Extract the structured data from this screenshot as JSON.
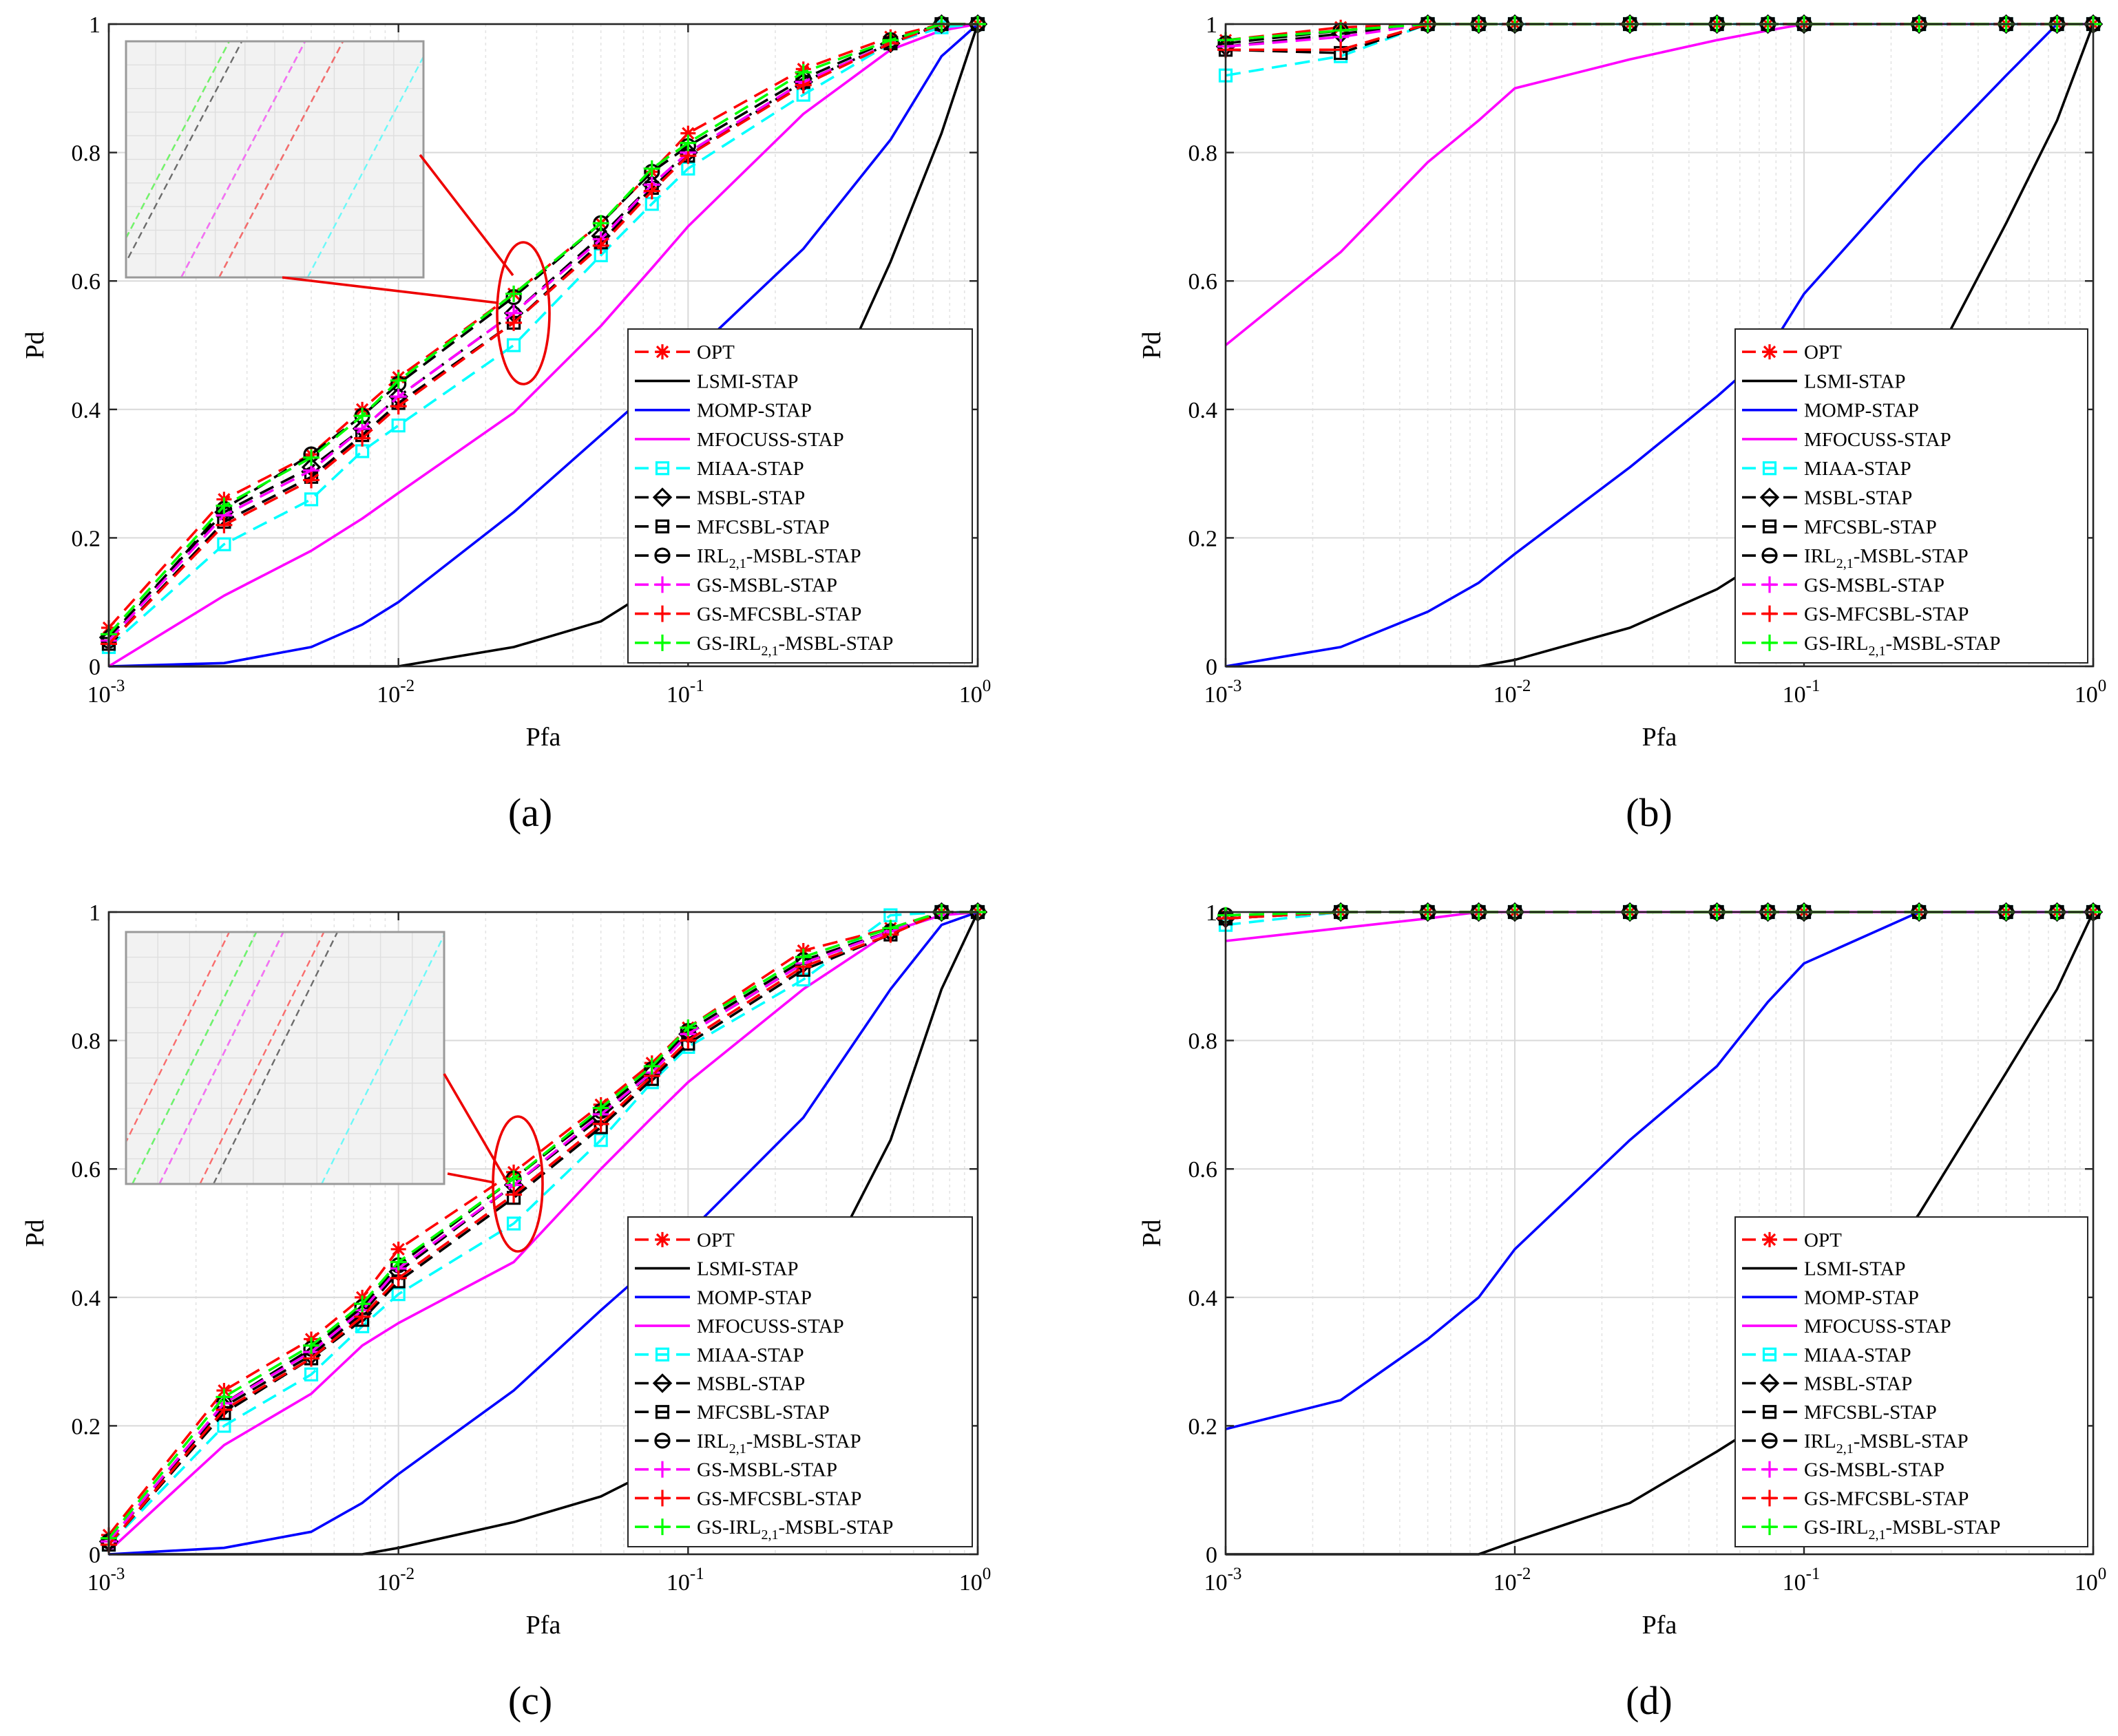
{
  "chart_data": [
    {
      "id": "a",
      "type": "line",
      "caption": "(a)",
      "xlabel": "Pfa",
      "ylabel": "Pd",
      "xscale": "log",
      "xlim": [
        0.001,
        1
      ],
      "ylim": [
        0,
        1
      ],
      "grid": true,
      "legend_position": "bottom-right",
      "inset": "zoom-in around Pfa = 0.025",
      "yticks": [
        "0",
        "0.2",
        "0.4",
        "0.6",
        "0.8",
        "1"
      ],
      "xticks": [
        {
          "base": "10",
          "exp": "-3"
        },
        {
          "base": "10",
          "exp": "-2"
        },
        {
          "base": "10",
          "exp": "-1"
        },
        {
          "base": "10",
          "exp": "0"
        }
      ],
      "x": [
        0.001,
        0.0025,
        0.005,
        0.0075,
        0.01,
        0.025,
        0.05,
        0.075,
        0.1,
        0.25,
        0.5,
        0.75,
        1
      ],
      "series": [
        {
          "key": "opt",
          "values": [
            0.06,
            0.26,
            0.33,
            0.4,
            0.45,
            0.58,
            0.69,
            0.77,
            0.83,
            0.93,
            0.98,
            1.0,
            1.0
          ]
        },
        {
          "key": "lsmi",
          "values": [
            0,
            0,
            0,
            0,
            0,
            0.03,
            0.07,
            0.12,
            0.16,
            0.33,
            0.63,
            0.83,
            1.0
          ]
        },
        {
          "key": "momp",
          "values": [
            0,
            0.005,
            0.03,
            0.065,
            0.1,
            0.24,
            0.36,
            0.43,
            0.48,
            0.65,
            0.82,
            0.95,
            1.0
          ]
        },
        {
          "key": "mfocuss",
          "values": [
            0,
            0.11,
            0.18,
            0.23,
            0.27,
            0.395,
            0.53,
            0.62,
            0.685,
            0.86,
            0.96,
            0.99,
            1.0
          ]
        },
        {
          "key": "miaa",
          "values": [
            0.03,
            0.19,
            0.26,
            0.335,
            0.375,
            0.5,
            0.64,
            0.72,
            0.775,
            0.89,
            0.97,
            0.995,
            1.0
          ]
        },
        {
          "key": "msbl",
          "values": [
            0.045,
            0.24,
            0.31,
            0.37,
            0.42,
            0.55,
            0.67,
            0.75,
            0.8,
            0.91,
            0.97,
            1.0,
            1.0
          ]
        },
        {
          "key": "mfcsbl",
          "values": [
            0.035,
            0.225,
            0.295,
            0.36,
            0.41,
            0.535,
            0.66,
            0.745,
            0.795,
            0.91,
            0.97,
            1.0,
            1.0
          ]
        },
        {
          "key": "irl",
          "values": [
            0.04,
            0.245,
            0.33,
            0.39,
            0.44,
            0.575,
            0.69,
            0.77,
            0.81,
            0.915,
            0.975,
            1.0,
            1.0
          ]
        },
        {
          "key": "gsmsbl",
          "values": [
            0.04,
            0.235,
            0.305,
            0.37,
            0.42,
            0.55,
            0.665,
            0.75,
            0.8,
            0.91,
            0.97,
            1.0,
            1.0
          ]
        },
        {
          "key": "gsmfcsbl",
          "values": [
            0.035,
            0.22,
            0.29,
            0.355,
            0.405,
            0.535,
            0.655,
            0.74,
            0.795,
            0.905,
            0.97,
            1.0,
            1.0
          ]
        },
        {
          "key": "gsirl",
          "values": [
            0.05,
            0.25,
            0.325,
            0.39,
            0.445,
            0.58,
            0.69,
            0.775,
            0.815,
            0.925,
            0.975,
            1.0,
            1.0
          ]
        }
      ]
    },
    {
      "id": "b",
      "type": "line",
      "caption": "(b)",
      "xlabel": "Pfa",
      "ylabel": "Pd",
      "xscale": "log",
      "xlim": [
        0.001,
        1
      ],
      "ylim": [
        0,
        1
      ],
      "grid": true,
      "legend_position": "bottom-right",
      "yticks": [
        "0",
        "0.2",
        "0.4",
        "0.6",
        "0.8",
        "1"
      ],
      "xticks": [
        {
          "base": "10",
          "exp": "-3"
        },
        {
          "base": "10",
          "exp": "-2"
        },
        {
          "base": "10",
          "exp": "-1"
        },
        {
          "base": "10",
          "exp": "0"
        }
      ],
      "x": [
        0.001,
        0.0025,
        0.005,
        0.0075,
        0.01,
        0.025,
        0.05,
        0.075,
        0.1,
        0.25,
        0.5,
        0.75,
        1
      ],
      "series": [
        {
          "key": "opt",
          "values": [
            0.975,
            0.995,
            1.0,
            1.0,
            1.0,
            1.0,
            1.0,
            1.0,
            1.0,
            1.0,
            1.0,
            1.0,
            1.0
          ]
        },
        {
          "key": "lsmi",
          "values": [
            0,
            0,
            0,
            0,
            0.01,
            0.06,
            0.12,
            0.17,
            0.22,
            0.43,
            0.69,
            0.85,
            1.0
          ]
        },
        {
          "key": "momp",
          "values": [
            0,
            0.03,
            0.085,
            0.13,
            0.175,
            0.31,
            0.42,
            0.49,
            0.58,
            0.78,
            0.92,
            1.0,
            1.0
          ]
        },
        {
          "key": "mfocuss",
          "values": [
            0.5,
            0.645,
            0.785,
            0.85,
            0.9,
            0.945,
            0.975,
            0.99,
            1.0,
            1.0,
            1.0,
            1.0,
            1.0
          ]
        },
        {
          "key": "miaa",
          "values": [
            0.92,
            0.95,
            1.0,
            1.0,
            1.0,
            1.0,
            1.0,
            1.0,
            1.0,
            1.0,
            1.0,
            1.0,
            1.0
          ]
        },
        {
          "key": "msbl",
          "values": [
            0.965,
            0.985,
            1.0,
            1.0,
            1.0,
            1.0,
            1.0,
            1.0,
            1.0,
            1.0,
            1.0,
            1.0,
            1.0
          ]
        },
        {
          "key": "mfcsbl",
          "values": [
            0.96,
            0.955,
            1.0,
            1.0,
            1.0,
            1.0,
            1.0,
            1.0,
            1.0,
            1.0,
            1.0,
            1.0,
            1.0
          ]
        },
        {
          "key": "irl",
          "values": [
            0.97,
            0.99,
            1.0,
            1.0,
            1.0,
            1.0,
            1.0,
            1.0,
            1.0,
            1.0,
            1.0,
            1.0,
            1.0
          ]
        },
        {
          "key": "gsmsbl",
          "values": [
            0.965,
            0.98,
            1.0,
            1.0,
            1.0,
            1.0,
            1.0,
            1.0,
            1.0,
            1.0,
            1.0,
            1.0,
            1.0
          ]
        },
        {
          "key": "gsmfcsbl",
          "values": [
            0.96,
            0.96,
            1.0,
            1.0,
            1.0,
            1.0,
            1.0,
            1.0,
            1.0,
            1.0,
            1.0,
            1.0,
            1.0
          ]
        },
        {
          "key": "gsirl",
          "values": [
            0.975,
            0.99,
            1.0,
            1.0,
            1.0,
            1.0,
            1.0,
            1.0,
            1.0,
            1.0,
            1.0,
            1.0,
            1.0
          ]
        }
      ]
    },
    {
      "id": "c",
      "type": "line",
      "caption": "(c)",
      "xlabel": "Pfa",
      "ylabel": "Pd",
      "xscale": "log",
      "xlim": [
        0.001,
        1
      ],
      "ylim": [
        0,
        1
      ],
      "grid": true,
      "legend_position": "bottom-right",
      "inset": "zoom-in around Pfa = 0.025",
      "yticks": [
        "0",
        "0.2",
        "0.4",
        "0.6",
        "0.8",
        "1"
      ],
      "xticks": [
        {
          "base": "10",
          "exp": "-3"
        },
        {
          "base": "10",
          "exp": "-2"
        },
        {
          "base": "10",
          "exp": "-1"
        },
        {
          "base": "10",
          "exp": "0"
        }
      ],
      "x": [
        0.001,
        0.0025,
        0.005,
        0.0075,
        0.01,
        0.025,
        0.05,
        0.075,
        0.1,
        0.25,
        0.5,
        0.75,
        1
      ],
      "series": [
        {
          "key": "opt",
          "values": [
            0.03,
            0.255,
            0.335,
            0.4,
            0.475,
            0.595,
            0.7,
            0.765,
            0.82,
            0.94,
            0.975,
            1.0,
            1.0
          ]
        },
        {
          "key": "lsmi",
          "values": [
            0,
            0,
            0,
            0,
            0.01,
            0.05,
            0.09,
            0.13,
            0.175,
            0.38,
            0.645,
            0.88,
            1.0
          ]
        },
        {
          "key": "momp",
          "values": [
            0,
            0.01,
            0.035,
            0.08,
            0.125,
            0.255,
            0.38,
            0.45,
            0.5,
            0.68,
            0.88,
            0.98,
            1.0
          ]
        },
        {
          "key": "mfocuss",
          "values": [
            0.005,
            0.17,
            0.25,
            0.325,
            0.36,
            0.455,
            0.6,
            0.68,
            0.735,
            0.88,
            0.97,
            0.995,
            1.0
          ]
        },
        {
          "key": "miaa",
          "values": [
            0.015,
            0.2,
            0.28,
            0.355,
            0.405,
            0.515,
            0.645,
            0.735,
            0.79,
            0.895,
            0.995,
            1.0,
            1.0
          ]
        },
        {
          "key": "msbl",
          "values": [
            0.02,
            0.23,
            0.31,
            0.375,
            0.44,
            0.575,
            0.68,
            0.75,
            0.81,
            0.92,
            0.97,
            1.0,
            1.0
          ]
        },
        {
          "key": "mfcsbl",
          "values": [
            0.015,
            0.22,
            0.305,
            0.365,
            0.425,
            0.555,
            0.665,
            0.74,
            0.795,
            0.91,
            0.965,
            1.0,
            1.0
          ]
        },
        {
          "key": "irl",
          "values": [
            0.02,
            0.235,
            0.32,
            0.385,
            0.45,
            0.585,
            0.69,
            0.755,
            0.815,
            0.925,
            0.97,
            1.0,
            1.0
          ]
        },
        {
          "key": "gsmsbl",
          "values": [
            0.02,
            0.235,
            0.315,
            0.38,
            0.445,
            0.575,
            0.685,
            0.75,
            0.81,
            0.92,
            0.97,
            1.0,
            1.0
          ]
        },
        {
          "key": "gsmfcsbl",
          "values": [
            0.015,
            0.225,
            0.305,
            0.37,
            0.43,
            0.56,
            0.67,
            0.745,
            0.8,
            0.915,
            0.965,
            1.0,
            1.0
          ]
        },
        {
          "key": "gsirl",
          "values": [
            0.025,
            0.245,
            0.325,
            0.39,
            0.455,
            0.585,
            0.695,
            0.76,
            0.82,
            0.93,
            0.975,
            1.0,
            1.0
          ]
        }
      ]
    },
    {
      "id": "d",
      "type": "line",
      "caption": "(d)",
      "xlabel": "Pfa",
      "ylabel": "Pd",
      "xscale": "log",
      "xlim": [
        0.001,
        1
      ],
      "ylim": [
        0,
        1
      ],
      "grid": true,
      "legend_position": "bottom-right",
      "yticks": [
        "0",
        "0.2",
        "0.4",
        "0.6",
        "0.8",
        "1"
      ],
      "xticks": [
        {
          "base": "10",
          "exp": "-3"
        },
        {
          "base": "10",
          "exp": "-2"
        },
        {
          "base": "10",
          "exp": "-1"
        },
        {
          "base": "10",
          "exp": "0"
        }
      ],
      "x": [
        0.001,
        0.0025,
        0.005,
        0.0075,
        0.01,
        0.025,
        0.05,
        0.075,
        0.1,
        0.25,
        0.5,
        0.75,
        1
      ],
      "series": [
        {
          "key": "opt",
          "values": [
            0.995,
            1.0,
            1.0,
            1.0,
            1.0,
            1.0,
            1.0,
            1.0,
            1.0,
            1.0,
            1.0,
            1.0,
            1.0
          ]
        },
        {
          "key": "lsmi",
          "values": [
            0,
            0,
            0,
            0,
            0.02,
            0.08,
            0.16,
            0.21,
            0.28,
            0.53,
            0.75,
            0.88,
            1.0
          ]
        },
        {
          "key": "momp",
          "values": [
            0.195,
            0.24,
            0.335,
            0.4,
            0.475,
            0.645,
            0.76,
            0.86,
            0.92,
            1.0,
            1.0,
            1.0,
            1.0
          ]
        },
        {
          "key": "mfocuss",
          "values": [
            0.955,
            0.975,
            0.99,
            1.0,
            1.0,
            1.0,
            1.0,
            1.0,
            1.0,
            1.0,
            1.0,
            1.0,
            1.0
          ]
        },
        {
          "key": "miaa",
          "values": [
            0.98,
            1.0,
            1.0,
            1.0,
            1.0,
            1.0,
            1.0,
            1.0,
            1.0,
            1.0,
            1.0,
            1.0,
            1.0
          ]
        },
        {
          "key": "msbl",
          "values": [
            0.99,
            1.0,
            1.0,
            1.0,
            1.0,
            1.0,
            1.0,
            1.0,
            1.0,
            1.0,
            1.0,
            1.0,
            1.0
          ]
        },
        {
          "key": "mfcsbl",
          "values": [
            0.99,
            1.0,
            1.0,
            1.0,
            1.0,
            1.0,
            1.0,
            1.0,
            1.0,
            1.0,
            1.0,
            1.0,
            1.0
          ]
        },
        {
          "key": "irl",
          "values": [
            0.995,
            1.0,
            1.0,
            1.0,
            1.0,
            1.0,
            1.0,
            1.0,
            1.0,
            1.0,
            1.0,
            1.0,
            1.0
          ]
        },
        {
          "key": "gsmsbl",
          "values": [
            0.99,
            1.0,
            1.0,
            1.0,
            1.0,
            1.0,
            1.0,
            1.0,
            1.0,
            1.0,
            1.0,
            1.0,
            1.0
          ]
        },
        {
          "key": "gsmfcsbl",
          "values": [
            0.99,
            1.0,
            1.0,
            1.0,
            1.0,
            1.0,
            1.0,
            1.0,
            1.0,
            1.0,
            1.0,
            1.0,
            1.0
          ]
        },
        {
          "key": "gsirl",
          "values": [
            0.995,
            1.0,
            1.0,
            1.0,
            1.0,
            1.0,
            1.0,
            1.0,
            1.0,
            1.0,
            1.0,
            1.0,
            1.0
          ]
        }
      ]
    }
  ],
  "legend": [
    {
      "key": "opt",
      "label": "OPT",
      "sub": "",
      "after": "",
      "color": "#ff0000",
      "dashed": true,
      "marker": "asterisk"
    },
    {
      "key": "lsmi",
      "label": "LSMI-STAP",
      "sub": "",
      "after": "",
      "color": "#000000",
      "dashed": false,
      "marker": "none"
    },
    {
      "key": "momp",
      "label": "MOMP-STAP",
      "sub": "",
      "after": "",
      "color": "#0000ff",
      "dashed": false,
      "marker": "none"
    },
    {
      "key": "mfocuss",
      "label": "MFOCUSS-STAP",
      "sub": "",
      "after": "",
      "color": "#ff00ff",
      "dashed": false,
      "marker": "none"
    },
    {
      "key": "miaa",
      "label": "MIAA-STAP",
      "sub": "",
      "after": "",
      "color": "#00ffff",
      "dashed": true,
      "marker": "square"
    },
    {
      "key": "msbl",
      "label": "MSBL-STAP",
      "sub": "",
      "after": "",
      "color": "#000000",
      "dashed": true,
      "marker": "diamond"
    },
    {
      "key": "mfcsbl",
      "label": "MFCSBL-STAP",
      "sub": "",
      "after": "",
      "color": "#000000",
      "dashed": true,
      "marker": "square"
    },
    {
      "key": "irl",
      "label": "IRL",
      "sub": "2,1",
      "after": "-MSBL-STAP",
      "color": "#000000",
      "dashed": true,
      "marker": "circle"
    },
    {
      "key": "gsmsbl",
      "label": "GS-MSBL-STAP",
      "sub": "",
      "after": "",
      "color": "#ff00ff",
      "dashed": true,
      "marker": "plus"
    },
    {
      "key": "gsmfcsbl",
      "label": "GS-MFCSBL-STAP",
      "sub": "",
      "after": "",
      "color": "#ff0000",
      "dashed": true,
      "marker": "plus"
    },
    {
      "key": "gsirl",
      "label": "GS-IRL",
      "sub": "2,1",
      "after": "-MSBL-STAP",
      "color": "#00ff00",
      "dashed": true,
      "marker": "plus"
    }
  ]
}
